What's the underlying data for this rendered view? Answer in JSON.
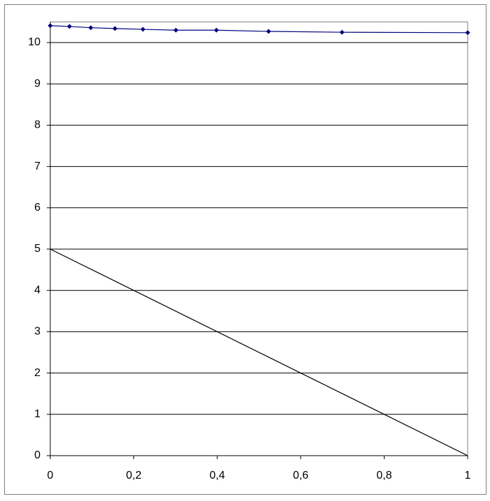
{
  "chart_data": {
    "type": "line",
    "series": [
      {
        "color": "#000080",
        "marker": "diamond",
        "x": [
          0,
          0.046,
          0.097,
          0.155,
          0.222,
          0.301,
          0.398,
          0.523,
          0.699,
          1
        ],
        "values": [
          10.41,
          10.39,
          10.36,
          10.34,
          10.32,
          10.3,
          10.3,
          10.27,
          10.25,
          10.24
        ]
      },
      {
        "color": "#000000",
        "x": [
          0,
          1
        ],
        "values": [
          5,
          0
        ]
      }
    ],
    "xlim": [
      0,
      1
    ],
    "xticks": [
      0,
      {
        "value": 0.2,
        "label": "0,2"
      },
      {
        "value": 0.4,
        "label": "0,4"
      },
      {
        "value": 0.6,
        "label": "0,6"
      },
      {
        "value": 0.8,
        "label": "0,8"
      },
      1
    ],
    "ylim": [
      0,
      10.5
    ],
    "yticks": [
      0,
      1,
      2,
      3,
      4,
      5,
      6,
      7,
      8,
      9,
      10
    ],
    "grid": true
  }
}
